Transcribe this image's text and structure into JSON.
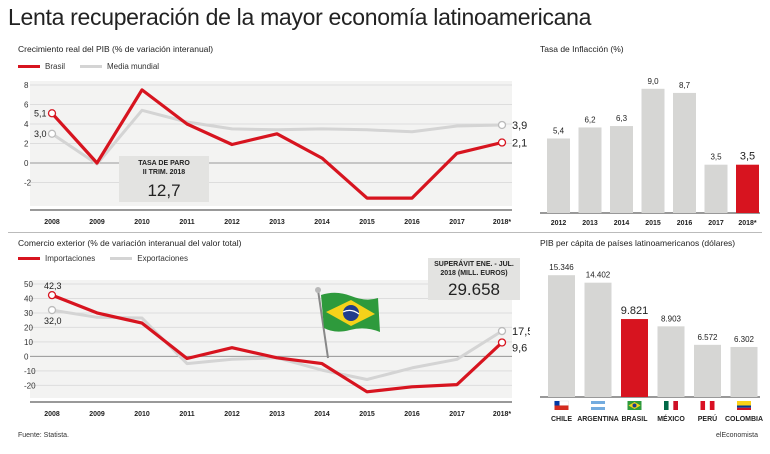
{
  "title": "Lenta recuperación de la mayor economía latinoamericana",
  "footer": {
    "source": "Fuente: Statista.",
    "brand": "elEconomista"
  },
  "colors": {
    "brasil": "#d7141f",
    "media": "#d4d4d4",
    "bar_gray": "#d6d6d4",
    "box_bg": "#e3e3e1",
    "grid_bg": "#f3f3f2"
  },
  "chart_data": [
    {
      "id": "pib",
      "type": "line",
      "title": "Crecimiento real del PIB (% de variación interanual)",
      "categories": [
        "2008",
        "2009",
        "2010",
        "2011",
        "2012",
        "2013",
        "2014",
        "2015",
        "2016",
        "2017",
        "2018*"
      ],
      "series": [
        {
          "name": "Brasil",
          "color": "#d7141f",
          "values": [
            5.1,
            0.0,
            7.5,
            4.0,
            1.9,
            3.0,
            0.5,
            -3.6,
            -3.6,
            1.0,
            2.1
          ]
        },
        {
          "name": "Media mundial",
          "color": "#d4d4d4",
          "values": [
            3.0,
            -0.1,
            5.4,
            4.2,
            3.5,
            3.4,
            3.5,
            3.4,
            3.2,
            3.8,
            3.9
          ]
        }
      ],
      "yticks": [
        8,
        6,
        4,
        2,
        0,
        -2
      ],
      "ylim": [
        -4,
        8
      ],
      "labels": {
        "brasil_start": "5,1",
        "media_start": "3,0",
        "brasil_end": "2,1",
        "media_end": "3,9"
      },
      "callout": {
        "title": "TASA DE PARO\nII TRIM. 2018",
        "value": "12,7"
      }
    },
    {
      "id": "inflacion",
      "type": "bar",
      "title": "Tasa de Inflacción (%)",
      "categories": [
        "2012",
        "2013",
        "2014",
        "2015",
        "2016",
        "2017",
        "2018*"
      ],
      "values": [
        5.4,
        6.2,
        6.3,
        9.0,
        8.7,
        3.5,
        3.5
      ],
      "value_labels": [
        "5,4",
        "6,2",
        "6,3",
        "9,0",
        "8,7",
        "3,5",
        "3,5"
      ],
      "highlight_index": 6,
      "ylim": [
        0,
        10
      ]
    },
    {
      "id": "comercio",
      "type": "line",
      "title": "Comercio exterior (% de variación interanual del valor total)",
      "categories": [
        "2008",
        "2009",
        "2010",
        "2011",
        "2012",
        "2013",
        "2014",
        "2015",
        "2016",
        "2017",
        "2018*"
      ],
      "series": [
        {
          "name": "Importaciones",
          "color": "#d7141f",
          "values": [
            42.3,
            30.0,
            23.0,
            -1.5,
            6.0,
            -1.0,
            -5.0,
            -24.5,
            -21.0,
            -19.5,
            9.6
          ]
        },
        {
          "name": "Exportaciones",
          "color": "#d4d4d4",
          "values": [
            32.0,
            27.0,
            26.5,
            -5.0,
            -2.0,
            -1.0,
            -9.5,
            -16.0,
            -8.0,
            -2.0,
            17.5
          ]
        }
      ],
      "yticks": [
        50,
        40,
        30,
        20,
        10,
        0,
        -10,
        -20
      ],
      "ylim": [
        -26,
        50
      ],
      "labels": {
        "imp_start": "42,3",
        "exp_start": "32,0",
        "exp_end": "17,5",
        "imp_end": "9,6"
      },
      "callout": {
        "title": "SUPERÁVIT ENE. - JUL.\n2018 (MILL. EUROS)",
        "value": "29.658"
      }
    },
    {
      "id": "pib_percapita",
      "type": "bar",
      "title": "PIB per cápita de países latinoamericanos (dólares)",
      "categories": [
        "CHILE",
        "ARGENTINA",
        "BRASIL",
        "MÉXICO",
        "PERÚ",
        "COLOMBIA"
      ],
      "values": [
        15346,
        14402,
        9821,
        8903,
        6572,
        6302
      ],
      "value_labels": [
        "15.346",
        "14.402",
        "9.821",
        "8.903",
        "6.572",
        "6.302"
      ],
      "flags": [
        "chile-flag-icon",
        "argentina-flag-icon",
        "brazil-flag-icon",
        "mexico-flag-icon",
        "peru-flag-icon",
        "colombia-flag-icon"
      ],
      "highlight_index": 2,
      "ylim": [
        0,
        16000
      ]
    }
  ]
}
